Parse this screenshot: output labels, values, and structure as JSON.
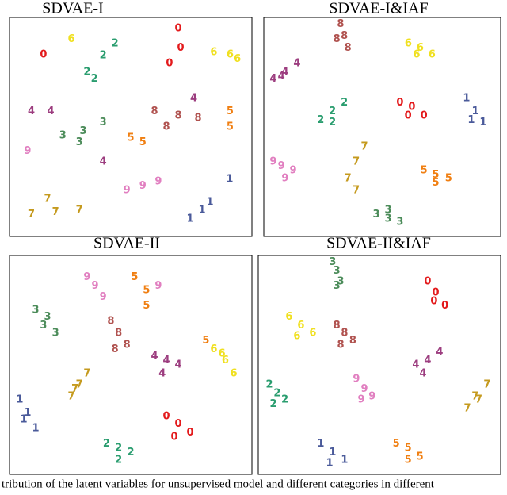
{
  "chart_data": [
    {
      "type": "scatter",
      "title": "SDVAE-I",
      "xlim": [
        0,
        100
      ],
      "ylim": [
        0,
        100
      ],
      "series": [
        {
          "name": "0",
          "color": "#e31a1c",
          "x": [
            70.6,
            14,
            69.6,
            66
          ],
          "values": [
            86,
            83,
            95,
            79
          ]
        },
        {
          "name": "1",
          "color": "#4a5a9a",
          "x": [
            82.7,
            74.5,
            90.8,
            79.4
          ],
          "values": [
            15.6,
            8,
            26,
            12
          ]
        },
        {
          "name": "2",
          "color": "#2a9d6f",
          "x": [
            38.6,
            32,
            43.5,
            35
          ],
          "values": [
            82.6,
            75,
            88,
            72
          ]
        },
        {
          "name": "3",
          "color": "#4c8c5a",
          "x": [
            30.4,
            22,
            38.6,
            28.8
          ],
          "values": [
            48,
            46,
            52,
            43
          ]
        },
        {
          "name": "4",
          "color": "#9c3d7f",
          "x": [
            9,
            17,
            38.6,
            76
          ],
          "values": [
            57,
            57,
            34,
            63
          ]
        },
        {
          "name": "5",
          "color": "#f07f12",
          "x": [
            55,
            91,
            50,
            91
          ],
          "values": [
            43,
            50,
            45,
            57
          ]
        },
        {
          "name": "6",
          "color": "#f0e020",
          "x": [
            91,
            84.3,
            25.5,
            94
          ],
          "values": [
            83,
            84,
            90,
            81
          ]
        },
        {
          "name": "7",
          "color": "#c59a1e",
          "x": [
            19,
            9,
            28.8,
            15.7
          ],
          "values": [
            11,
            10,
            12,
            17
          ]
        },
        {
          "name": "8",
          "color": "#b0524f",
          "x": [
            69.6,
            59.8,
            77.8,
            64.7
          ],
          "values": [
            55,
            57,
            54,
            50
          ]
        },
        {
          "name": "9",
          "color": "#e17fc0",
          "x": [
            55,
            48.4,
            7.5,
            61.4
          ],
          "values": [
            23,
            21,
            39,
            25
          ]
        }
      ]
    },
    {
      "type": "scatter",
      "title": "SDVAE-I&IAF",
      "xlim": [
        0,
        100
      ],
      "ylim": [
        0,
        100
      ],
      "series": [
        {
          "name": "0",
          "color": "#e31a1c",
          "x": [
            62.5,
            57.5,
            67.6,
            60.9
          ],
          "values": [
            59,
            61,
            55,
            55
          ]
        },
        {
          "name": "1",
          "color": "#4a5a9a",
          "x": [
            89.3,
            85.6,
            92.6,
            87.6
          ],
          "values": [
            57,
            63,
            52,
            53
          ]
        },
        {
          "name": "2",
          "color": "#2a9d6f",
          "x": [
            29,
            24,
            34,
            29
          ],
          "values": [
            57,
            53,
            61,
            52
          ]
        },
        {
          "name": "3",
          "color": "#4c8c5a",
          "x": [
            52.5,
            47.5,
            57.5,
            52.5
          ],
          "values": [
            8,
            10,
            6.5,
            12
          ]
        },
        {
          "name": "4",
          "color": "#9c3d7f",
          "x": [
            9,
            4,
            14,
            7.4
          ],
          "values": [
            75,
            72,
            79,
            73
          ]
        },
        {
          "name": "5",
          "color": "#f07f12",
          "x": [
            72.6,
            67.6,
            78,
            72.6
          ],
          "values": [
            28,
            30,
            26.5,
            24.5
          ]
        },
        {
          "name": "6",
          "color": "#f0e020",
          "x": [
            66,
            61,
            71,
            64.5
          ],
          "values": [
            86,
            88,
            83,
            83
          ]
        },
        {
          "name": "7",
          "color": "#c59a1e",
          "x": [
            39,
            35.5,
            42.5,
            39
          ],
          "values": [
            34,
            26.5,
            41,
            21
          ]
        },
        {
          "name": "8",
          "color": "#b0524f",
          "x": [
            34,
            32.4,
            35.5,
            30.8
          ],
          "values": [
            91.5,
            97,
            86,
            90
          ]
        },
        {
          "name": "9",
          "color": "#e17fc0",
          "x": [
            7.4,
            4,
            12.4,
            9
          ],
          "values": [
            32,
            34,
            30,
            26.5
          ]
        }
      ]
    },
    {
      "type": "scatter",
      "title": "SDVAE-II",
      "xlim": [
        0,
        100
      ],
      "ylim": [
        0,
        100
      ],
      "series": [
        {
          "name": "0",
          "color": "#e31a1c",
          "x": [
            69.6,
            64.7,
            74.5,
            68
          ],
          "values": [
            23,
            26.5,
            19,
            17
          ]
        },
        {
          "name": "1",
          "color": "#4a5a9a",
          "x": [
            7.5,
            4.2,
            10.8,
            5.9
          ],
          "values": [
            28,
            34,
            21,
            25
          ]
        },
        {
          "name": "2",
          "color": "#2a9d6f",
          "x": [
            45,
            40,
            50,
            45
          ],
          "values": [
            12,
            14,
            10,
            6.5
          ]
        },
        {
          "name": "3",
          "color": "#4c8c5a",
          "x": [
            15.7,
            10.8,
            19,
            14
          ],
          "values": [
            72,
            75,
            64.5,
            68
          ]
        },
        {
          "name": "4",
          "color": "#9c3d7f",
          "x": [
            64.7,
            59.8,
            69.6,
            63
          ],
          "values": [
            52,
            54,
            50,
            46
          ]
        },
        {
          "name": "5",
          "color": "#f07f12",
          "x": [
            56.5,
            81,
            51.6,
            56.5
          ],
          "values": [
            84,
            61,
            90,
            77
          ]
        },
        {
          "name": "6",
          "color": "#f0e020",
          "x": [
            89,
            84.3,
            92.5,
            87.6
          ],
          "values": [
            52,
            57,
            46,
            55
          ]
        },
        {
          "name": "7",
          "color": "#c59a1e",
          "x": [
            28.8,
            25.5,
            32,
            27
          ],
          "values": [
            41,
            35.5,
            46,
            39
          ]
        },
        {
          "name": "8",
          "color": "#b0524f",
          "x": [
            45,
            41.8,
            48.4,
            43.5
          ],
          "values": [
            64.5,
            70,
            59,
            57
          ]
        },
        {
          "name": "9",
          "color": "#e17fc0",
          "x": [
            35.3,
            32,
            38.6,
            61.4
          ],
          "values": [
            86,
            90,
            81,
            86
          ]
        }
      ]
    },
    {
      "type": "scatter",
      "title": "SDVAE-II&IAF",
      "xlim": [
        0,
        100
      ],
      "ylim": [
        0,
        100
      ],
      "series": [
        {
          "name": "0",
          "color": "#e31a1c",
          "x": [
            73.2,
            69.9,
            77,
            72.5
          ],
          "values": [
            83,
            88,
            77,
            79
          ]
        },
        {
          "name": "1",
          "color": "#4a5a9a",
          "x": [
            30.7,
            25.8,
            35.6,
            29.4
          ],
          "values": [
            10,
            14,
            6.5,
            5
          ]
        },
        {
          "name": "2",
          "color": "#2a9d6f",
          "x": [
            7.8,
            4.6,
            11,
            6.2
          ],
          "values": [
            37,
            41,
            34,
            32
          ]
        },
        {
          "name": "3",
          "color": "#4c8c5a",
          "x": [
            32.4,
            30.7,
            34,
            32.4
          ],
          "values": [
            93,
            97,
            88,
            86
          ]
        },
        {
          "name": "4",
          "color": "#9c3d7f",
          "x": [
            69.9,
            65,
            74.8,
            68
          ],
          "values": [
            52,
            50,
            55.8,
            46
          ]
        },
        {
          "name": "5",
          "color": "#f07f12",
          "x": [
            61.8,
            56.9,
            66.7,
            61.8
          ],
          "values": [
            12,
            14,
            8,
            6.5
          ]
        },
        {
          "name": "6",
          "color": "#f0e020",
          "x": [
            17.6,
            12.7,
            22.5,
            16
          ],
          "values": [
            68,
            72,
            64.5,
            63
          ]
        },
        {
          "name": "7",
          "color": "#c59a1e",
          "x": [
            89.5,
            86.3,
            94.4,
            91
          ],
          "values": [
            35.5,
            30,
            41,
            34
          ]
        },
        {
          "name": "8",
          "color": "#b0524f",
          "x": [
            35.6,
            32.4,
            39,
            34
          ],
          "values": [
            64.5,
            68,
            61,
            59
          ]
        },
        {
          "name": "9",
          "color": "#e17fc0",
          "x": [
            43.8,
            40.5,
            47,
            42.5
          ],
          "values": [
            39,
            43.5,
            35.5,
            34
          ]
        }
      ]
    }
  ],
  "caption": "tribution of the latent variables for unsupervised model and different categories in different"
}
